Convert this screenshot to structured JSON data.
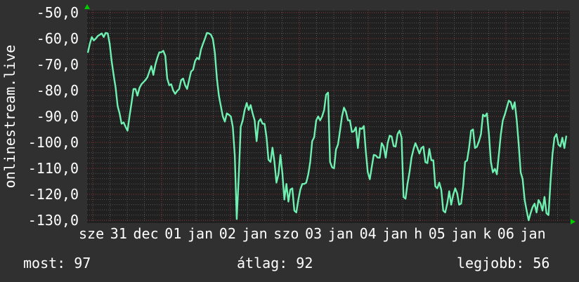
{
  "chart_data": {
    "type": "line",
    "title": "",
    "ylabel": "onlinestream.live",
    "xlabel": "",
    "ylim": [
      -130,
      -50
    ],
    "yticks": [
      "-50,0",
      "-60,0",
      "-70,0",
      "-80,0",
      "-90,0",
      "-100,0",
      "-110,0",
      "-120,0",
      "-130,0"
    ],
    "ytick_values": [
      -50,
      -60,
      -70,
      -80,
      -90,
      -100,
      -110,
      -120,
      -130
    ],
    "x_range": [
      "dec 30 22:00",
      "jan 06 22:00"
    ],
    "xtick_labels": [
      "sze",
      "31",
      "dec",
      "01",
      "jan",
      "02",
      "jan",
      "szo",
      "03",
      "jan",
      "04",
      "jan",
      "h",
      "05",
      "jan",
      "k",
      "06",
      "jan"
    ],
    "grid": true,
    "colors": {
      "background": "#303030",
      "plot_background": "#202020",
      "line": "#6ef0b0",
      "major_grid": "#8a3a3a",
      "minor_grid": "#555555",
      "axis_arrow": "#00cc00",
      "text": "#ffffff"
    },
    "series": [
      {
        "values": [
          -65.5,
          -62,
          -59.4,
          -60.7,
          -60,
          -59,
          -58.5,
          -58,
          -59.4,
          -57.8,
          -58,
          -62,
          -68.7,
          -74,
          -79,
          -86,
          -88.8,
          -92.8,
          -92.3,
          -94,
          -95.5,
          -90,
          -84.8,
          -79.4,
          -79.4,
          -82,
          -79,
          -77.6,
          -76.8,
          -76,
          -74.9,
          -72.7,
          -70.6,
          -74,
          -70,
          -67.4,
          -65.3,
          -65.3,
          -64.7,
          -66.6,
          -75.4,
          -78,
          -77.6,
          -80,
          -81.3,
          -80.2,
          -79.4,
          -76,
          -75.4,
          -78,
          -79.4,
          -76,
          -72.7,
          -72,
          -68.7,
          -67.4,
          -68,
          -64.2,
          -62,
          -60,
          -57.8,
          -58,
          -58.5,
          -60.2,
          -65.5,
          -75.4,
          -82,
          -86,
          -90,
          -92,
          -88.8,
          -89.3,
          -90,
          -94,
          -104.8,
          -129.5,
          -112.9,
          -94,
          -91.5,
          -87.5,
          -84.8,
          -87.5,
          -85.6,
          -88.8,
          -91.5,
          -99.5,
          -92,
          -91,
          -92.8,
          -92.8,
          -98,
          -106.7,
          -107.5,
          -102,
          -107.5,
          -115.5,
          -112.3,
          -104.8,
          -112,
          -122,
          -116,
          -122.8,
          -118.2,
          -117.7,
          -126.3,
          -127,
          -122.2,
          -118.2,
          -116,
          -116,
          -115.5,
          -112.3,
          -107.5,
          -99.5,
          -98,
          -91.5,
          -90,
          -91.5,
          -90,
          -87.5,
          -81.6,
          -80.8,
          -107.5,
          -109.6,
          -110,
          -102.7,
          -100.8,
          -95.5,
          -90,
          -86.6,
          -88.2,
          -91.5,
          -91.5,
          -96,
          -95.7,
          -94.2,
          -102.2,
          -94.5,
          -94.8,
          -93.7,
          -103.5,
          -111.5,
          -114.2,
          -109.4,
          -104.8,
          -105,
          -105.9,
          -105.9,
          -100.3,
          -101.6,
          -105.9,
          -100.3,
          -97.4,
          -97.7,
          -101.4,
          -101.6,
          -96.8,
          -95.5,
          -98.2,
          -121,
          -121.7,
          -116,
          -111.5,
          -105.9,
          -102.7,
          -100.3,
          -102.2,
          -104.3,
          -102.2,
          -101.6,
          -107.6,
          -108,
          -102.5,
          -106.9,
          -106.9,
          -116.9,
          -117.7,
          -115.5,
          -118.2,
          -126.3,
          -127,
          -123.6,
          -118.8,
          -124,
          -120.3,
          -117.7,
          -119.6,
          -124,
          -123.6,
          -116.9,
          -107.5,
          -107,
          -102.2,
          -95.5,
          -95,
          -102.2,
          -101.6,
          -99.5,
          -96.8,
          -89.3,
          -90,
          -88.8,
          -96.8,
          -107.5,
          -111.5,
          -110.2,
          -112.3,
          -104.8,
          -96.8,
          -91.5,
          -89.3,
          -86.6,
          -83.9,
          -84.5,
          -87.2,
          -84.5,
          -91.5,
          -100.8,
          -111.5,
          -114.2,
          -122.2,
          -126.3,
          -130,
          -127.3,
          -124.9,
          -123.6,
          -127,
          -122.2,
          -123.6,
          -126.3,
          -121,
          -127.3,
          -128,
          -115.5,
          -104.8,
          -98.2,
          -96.8,
          -100.8,
          -101.6,
          -98.2,
          -102.2,
          -97.4
        ]
      }
    ]
  },
  "summary": {
    "current": "most: 97",
    "average": "átlag: 92",
    "best": "legjobb: 56"
  }
}
